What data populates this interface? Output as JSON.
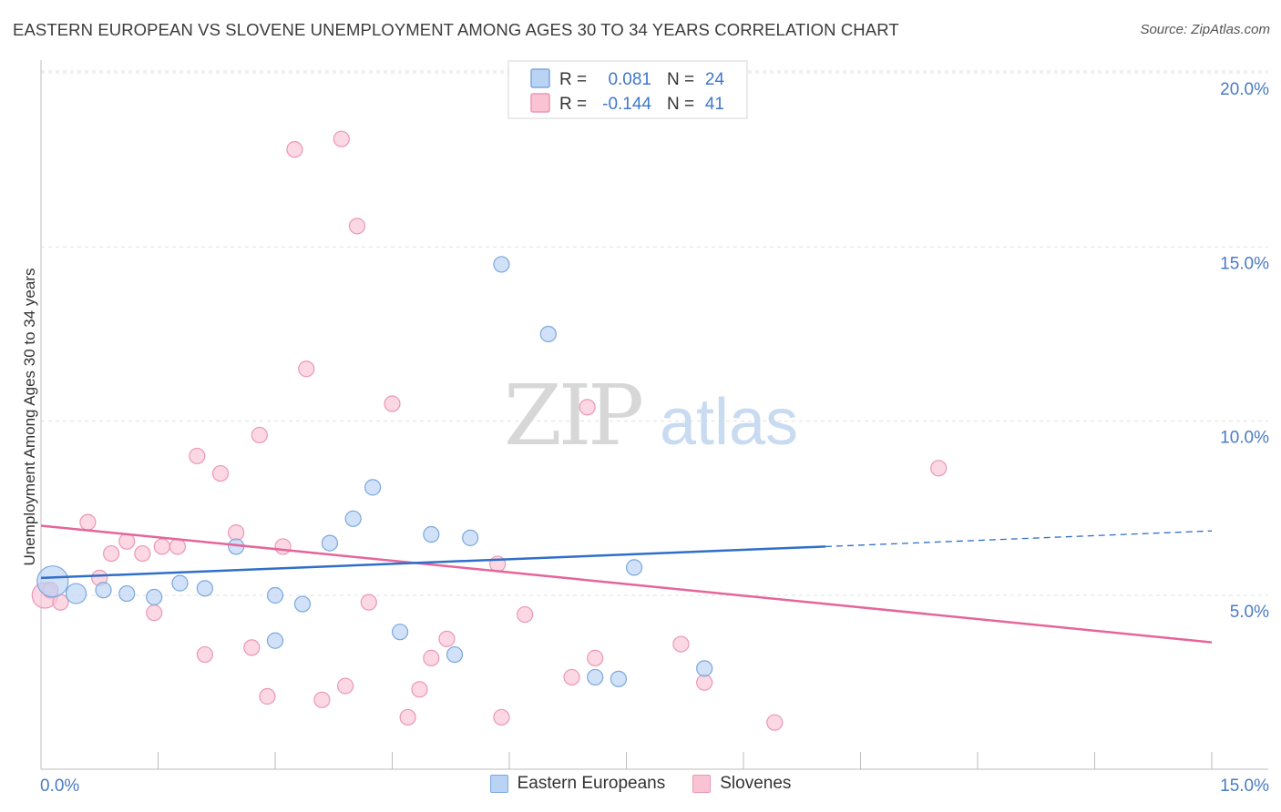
{
  "title": "EASTERN EUROPEAN VS SLOVENE UNEMPLOYMENT AMONG AGES 30 TO 34 YEARS CORRELATION CHART",
  "source": "Source: ZipAtlas.com",
  "watermark": {
    "zip": "ZIP",
    "atlas": "atlas"
  },
  "colors": {
    "blue_fill": "#b9d3f5",
    "blue_stroke": "#7ba7dd",
    "blue_line": "#2f6fc9",
    "pink_fill": "#f9c3d4",
    "pink_stroke": "#ec97b4",
    "pink_line": "#e5659a",
    "axis_label": "#4a7bc4"
  },
  "chart_data": {
    "type": "scatter",
    "xlabel": "",
    "ylabel": "Unemployment Among Ages 30 to 34 years",
    "xlim": [
      0,
      15
    ],
    "ylim": [
      0.6,
      20.5
    ],
    "x_tick_labels": [
      "0.0%",
      "15.0%"
    ],
    "y_ticks": [
      5,
      10,
      15,
      20
    ],
    "y_tick_labels": [
      "5.0%",
      "10.0%",
      "15.0%",
      "20.0%"
    ],
    "grid": true,
    "legend_top": [
      {
        "r_label": "R =",
        "r_value": "0.081",
        "n_label": "N =",
        "n_value": "24"
      },
      {
        "r_label": "R =",
        "r_value": "-0.144",
        "n_label": "N =",
        "n_value": "41"
      }
    ],
    "series": [
      {
        "name": "Eastern Europeans",
        "points": [
          [
            0.15,
            5.4
          ],
          [
            0.45,
            5.05
          ],
          [
            0.8,
            5.15
          ],
          [
            1.1,
            5.05
          ],
          [
            1.45,
            4.95
          ],
          [
            1.78,
            5.35
          ],
          [
            2.1,
            5.2
          ],
          [
            2.5,
            6.4
          ],
          [
            3.0,
            3.7
          ],
          [
            3.0,
            5.0
          ],
          [
            3.35,
            4.75
          ],
          [
            3.7,
            6.5
          ],
          [
            4.0,
            7.2
          ],
          [
            4.25,
            8.1
          ],
          [
            4.6,
            3.95
          ],
          [
            5.0,
            6.75
          ],
          [
            5.3,
            3.3
          ],
          [
            5.5,
            6.65
          ],
          [
            5.9,
            14.5
          ],
          [
            6.5,
            12.5
          ],
          [
            7.1,
            2.65
          ],
          [
            7.4,
            2.6
          ],
          [
            7.6,
            5.8
          ],
          [
            8.5,
            2.9
          ]
        ],
        "trend": {
          "x": [
            0,
            10.05
          ],
          "y": [
            5.5,
            6.4
          ]
        },
        "trend_dashed": {
          "x": [
            10.05,
            15
          ],
          "y": [
            6.4,
            6.85
          ]
        }
      },
      {
        "name": "Slovenes",
        "points": [
          [
            0.05,
            5.0
          ],
          [
            0.25,
            4.8
          ],
          [
            0.6,
            7.1
          ],
          [
            0.75,
            5.5
          ],
          [
            0.9,
            6.2
          ],
          [
            1.1,
            6.55
          ],
          [
            1.3,
            6.2
          ],
          [
            1.45,
            4.5
          ],
          [
            1.55,
            6.4
          ],
          [
            1.75,
            6.4
          ],
          [
            2.0,
            9.0
          ],
          [
            2.1,
            3.3
          ],
          [
            2.3,
            8.5
          ],
          [
            2.5,
            6.8
          ],
          [
            2.7,
            3.5
          ],
          [
            2.8,
            9.6
          ],
          [
            2.9,
            2.1
          ],
          [
            3.1,
            6.4
          ],
          [
            3.25,
            17.8
          ],
          [
            3.4,
            11.5
          ],
          [
            3.6,
            2.0
          ],
          [
            3.85,
            18.1
          ],
          [
            3.9,
            2.4
          ],
          [
            4.05,
            15.6
          ],
          [
            4.2,
            4.8
          ],
          [
            4.5,
            10.5
          ],
          [
            4.7,
            1.5
          ],
          [
            4.85,
            2.3
          ],
          [
            5.0,
            3.2
          ],
          [
            5.2,
            3.75
          ],
          [
            5.85,
            5.9
          ],
          [
            5.9,
            1.5
          ],
          [
            6.2,
            4.45
          ],
          [
            6.8,
            2.65
          ],
          [
            7.0,
            10.4
          ],
          [
            7.1,
            3.2
          ],
          [
            8.2,
            3.6
          ],
          [
            8.5,
            2.5
          ],
          [
            9.4,
            1.35
          ],
          [
            11.5,
            8.65
          ],
          [
            0.12,
            5.15
          ]
        ],
        "trend": {
          "x": [
            0,
            15
          ],
          "y": [
            7.0,
            3.65
          ]
        }
      }
    ]
  }
}
